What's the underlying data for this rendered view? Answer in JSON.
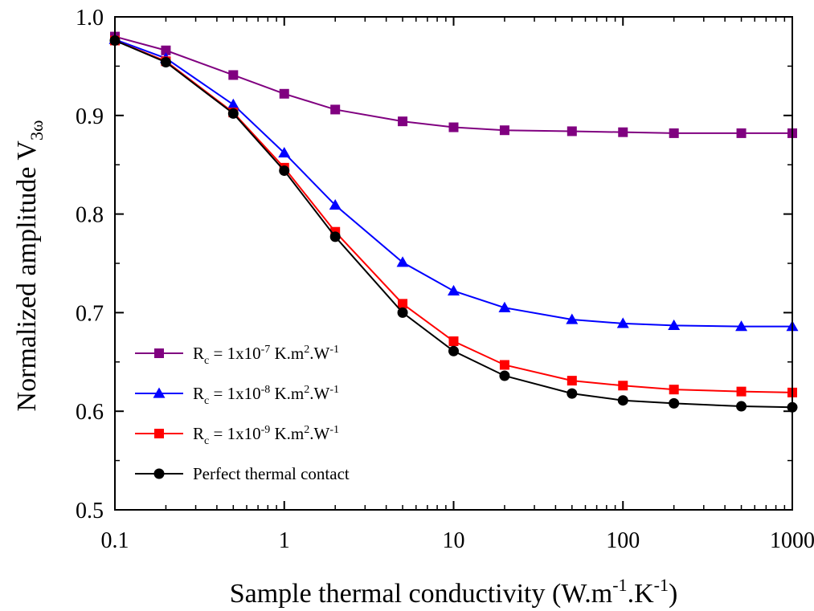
{
  "chart_data": {
    "type": "line",
    "title": "",
    "xlabel": "Sample thermal conductivity (W.m",
    "xlabel_parts": [
      {
        "text": "Sample thermal conductivity (W.m",
        "sup": false
      },
      {
        "text": "-1",
        "sup": true
      },
      {
        "text": ".K",
        "sup": false
      },
      {
        "text": "-1",
        "sup": true
      },
      {
        "text": ")",
        "sup": false
      }
    ],
    "ylabel_parts": [
      {
        "text": "Normalized amplitude V",
        "sub": false
      },
      {
        "text": "3ω",
        "sub": true
      }
    ],
    "x_scale": "log",
    "xlim": [
      0.1,
      1000
    ],
    "ylim": [
      0.5,
      1.0
    ],
    "x_ticks": [
      0.1,
      1,
      10,
      100,
      1000
    ],
    "x_tick_labels": [
      "0.1",
      "1",
      "10",
      "100",
      "1000"
    ],
    "y_ticks": [
      0.5,
      0.6,
      0.7,
      0.8,
      0.9,
      1.0
    ],
    "y_tick_labels": [
      "0.5",
      "0.6",
      "0.7",
      "0.8",
      "0.9",
      "1.0"
    ],
    "grid": false,
    "legend_position": "lower-left",
    "x": [
      0.1,
      0.2,
      0.5,
      1,
      2,
      5,
      10,
      20,
      50,
      100,
      200,
      500,
      1000
    ],
    "series": [
      {
        "name_parts": [
          {
            "text": "R",
            "mode": "normal"
          },
          {
            "text": "c",
            "mode": "sub"
          },
          {
            "text": " = 1x10",
            "mode": "normal"
          },
          {
            "text": "-7",
            "mode": "sup"
          },
          {
            "text": " K.m",
            "mode": "normal"
          },
          {
            "text": "2",
            "mode": "sup"
          },
          {
            "text": ".W",
            "mode": "normal"
          },
          {
            "text": "-1",
            "mode": "sup"
          }
        ],
        "color": "#800080",
        "marker": "square",
        "values": [
          0.98,
          0.966,
          0.941,
          0.922,
          0.906,
          0.894,
          0.888,
          0.885,
          0.884,
          0.883,
          0.882,
          0.882,
          0.882
        ]
      },
      {
        "name_parts": [
          {
            "text": "R",
            "mode": "normal"
          },
          {
            "text": "c",
            "mode": "sub"
          },
          {
            "text": " = 1x10",
            "mode": "normal"
          },
          {
            "text": "-8",
            "mode": "sup"
          },
          {
            "text": " K.m",
            "mode": "normal"
          },
          {
            "text": "2",
            "mode": "sup"
          },
          {
            "text": ".W",
            "mode": "normal"
          },
          {
            "text": "-1",
            "mode": "sup"
          }
        ],
        "color": "#0000ff",
        "marker": "triangle",
        "values": [
          0.977,
          0.958,
          0.911,
          0.862,
          0.809,
          0.751,
          0.722,
          0.705,
          0.693,
          0.689,
          0.687,
          0.686,
          0.686
        ]
      },
      {
        "name_parts": [
          {
            "text": "R",
            "mode": "normal"
          },
          {
            "text": "c",
            "mode": "sub"
          },
          {
            "text": " = 1x10",
            "mode": "normal"
          },
          {
            "text": "-9",
            "mode": "sup"
          },
          {
            "text": " K.m",
            "mode": "normal"
          },
          {
            "text": "2",
            "mode": "sup"
          },
          {
            "text": ".W",
            "mode": "normal"
          },
          {
            "text": "-1",
            "mode": "sup"
          }
        ],
        "color": "#ff0000",
        "marker": "square",
        "values": [
          0.976,
          0.955,
          0.903,
          0.847,
          0.782,
          0.709,
          0.671,
          0.647,
          0.631,
          0.626,
          0.622,
          0.62,
          0.619
        ]
      },
      {
        "name_parts": [
          {
            "text": "Perfect thermal contact",
            "mode": "normal"
          }
        ],
        "color": "#000000",
        "marker": "circle",
        "values": [
          0.976,
          0.954,
          0.902,
          0.844,
          0.777,
          0.7,
          0.661,
          0.636,
          0.618,
          0.611,
          0.608,
          0.605,
          0.604
        ]
      }
    ]
  }
}
